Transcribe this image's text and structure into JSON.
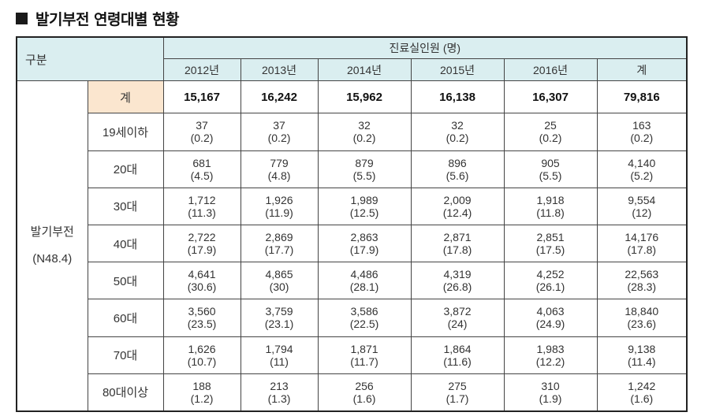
{
  "title": "발기부전 연령대별 현황",
  "table": {
    "corner_label": "구분",
    "super_header": "진료실인원 (명)",
    "years": [
      "2012년",
      "2013년",
      "2014년",
      "2015년",
      "2016년",
      "계"
    ],
    "group_label_line1": "발기부전",
    "group_label_line2": "(N48.4)",
    "total_label": "계",
    "totals": [
      "15,167",
      "16,242",
      "15,962",
      "16,138",
      "16,307",
      "79,816"
    ],
    "rows": [
      {
        "age": "19세이하",
        "cells": [
          [
            "37",
            "(0.2)"
          ],
          [
            "37",
            "(0.2)"
          ],
          [
            "32",
            "(0.2)"
          ],
          [
            "32",
            "(0.2)"
          ],
          [
            "25",
            "(0.2)"
          ],
          [
            "163",
            "(0.2)"
          ]
        ]
      },
      {
        "age": "20대",
        "cells": [
          [
            "681",
            "(4.5)"
          ],
          [
            "779",
            "(4.8)"
          ],
          [
            "879",
            "(5.5)"
          ],
          [
            "896",
            "(5.6)"
          ],
          [
            "905",
            "(5.5)"
          ],
          [
            "4,140",
            "(5.2)"
          ]
        ]
      },
      {
        "age": "30대",
        "cells": [
          [
            "1,712",
            "(11.3)"
          ],
          [
            "1,926",
            "(11.9)"
          ],
          [
            "1,989",
            "(12.5)"
          ],
          [
            "2,009",
            "(12.4)"
          ],
          [
            "1,918",
            "(11.8)"
          ],
          [
            "9,554",
            "(12)"
          ]
        ]
      },
      {
        "age": "40대",
        "cells": [
          [
            "2,722",
            "(17.9)"
          ],
          [
            "2,869",
            "(17.7)"
          ],
          [
            "2,863",
            "(17.9)"
          ],
          [
            "2,871",
            "(17.8)"
          ],
          [
            "2,851",
            "(17.5)"
          ],
          [
            "14,176",
            "(17.8)"
          ]
        ]
      },
      {
        "age": "50대",
        "cells": [
          [
            "4,641",
            "(30.6)"
          ],
          [
            "4,865",
            "(30)"
          ],
          [
            "4,486",
            "(28.1)"
          ],
          [
            "4,319",
            "(26.8)"
          ],
          [
            "4,252",
            "(26.1)"
          ],
          [
            "22,563",
            "(28.3)"
          ]
        ]
      },
      {
        "age": "60대",
        "cells": [
          [
            "3,560",
            "(23.5)"
          ],
          [
            "3,759",
            "(23.1)"
          ],
          [
            "3,586",
            "(22.5)"
          ],
          [
            "3,872",
            "(24)"
          ],
          [
            "4,063",
            "(24.9)"
          ],
          [
            "18,840",
            "(23.6)"
          ]
        ]
      },
      {
        "age": "70대",
        "cells": [
          [
            "1,626",
            "(10.7)"
          ],
          [
            "1,794",
            "(11)"
          ],
          [
            "1,871",
            "(11.7)"
          ],
          [
            "1,864",
            "(11.6)"
          ],
          [
            "1,983",
            "(12.2)"
          ],
          [
            "9,138",
            "(11.4)"
          ]
        ]
      },
      {
        "age": "80대이상",
        "cells": [
          [
            "188",
            "(1.2)"
          ],
          [
            "213",
            "(1.3)"
          ],
          [
            "256",
            "(1.6)"
          ],
          [
            "275",
            "(1.7)"
          ],
          [
            "310",
            "(1.9)"
          ],
          [
            "1,242",
            "(1.6)"
          ]
        ]
      }
    ]
  }
}
